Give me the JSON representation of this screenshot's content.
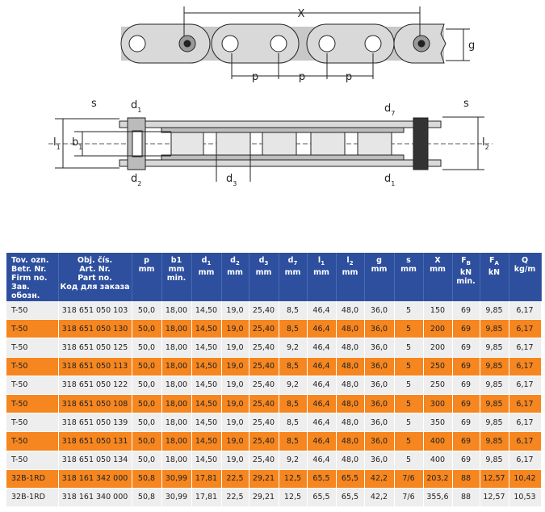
{
  "diagram_top": {
    "labels": [
      {
        "main": "X"
      },
      {
        "main": "p"
      },
      {
        "main": "p"
      },
      {
        "main": "p"
      },
      {
        "main": "g"
      }
    ]
  },
  "diagram_section": {
    "labels": [
      {
        "main": "s"
      },
      {
        "main": "d",
        "sub": "1"
      },
      {
        "main": "l",
        "sub": "1"
      },
      {
        "main": "b",
        "sub": "1"
      },
      {
        "main": "d",
        "sub": "2"
      },
      {
        "main": "d",
        "sub": "3"
      },
      {
        "main": "d",
        "sub": "7"
      },
      {
        "main": "s"
      },
      {
        "main": "l",
        "sub": "2"
      },
      {
        "main": "d",
        "sub": "1"
      }
    ]
  },
  "table": {
    "header": [
      {
        "lines": [
          "Tov. ozn.",
          "Betr. Nr.",
          "Firm no.",
          "Зав. обозн."
        ]
      },
      {
        "lines": [
          "Obj. čís.",
          "Art. Nr.",
          "Part no.",
          "Код для заказа"
        ]
      },
      {
        "symbol": {
          "main": "p"
        },
        "lines": [
          "mm"
        ]
      },
      {
        "symbol": {
          "main": "b1"
        },
        "lines": [
          "mm",
          "min."
        ]
      },
      {
        "symbol": {
          "main": "d",
          "sub": "1"
        },
        "lines": [
          "mm"
        ]
      },
      {
        "symbol": {
          "main": "d",
          "sub": "2"
        },
        "lines": [
          "mm"
        ]
      },
      {
        "symbol": {
          "main": "d",
          "sub": "3"
        },
        "lines": [
          "mm"
        ]
      },
      {
        "symbol": {
          "main": "d",
          "sub": "7"
        },
        "lines": [
          "mm"
        ]
      },
      {
        "symbol": {
          "main": "l",
          "sub": "1"
        },
        "lines": [
          "mm"
        ]
      },
      {
        "symbol": {
          "main": "l",
          "sub": "2"
        },
        "lines": [
          "mm"
        ]
      },
      {
        "symbol": {
          "main": "g"
        },
        "lines": [
          "mm"
        ]
      },
      {
        "symbol": {
          "main": "s"
        },
        "lines": [
          "mm"
        ]
      },
      {
        "symbol": {
          "main": "X"
        },
        "lines": [
          "mm"
        ]
      },
      {
        "symbol": {
          "main": "F",
          "sub": "B"
        },
        "lines": [
          "kN",
          "min."
        ]
      },
      {
        "symbol": {
          "main": "F",
          "sub": "A"
        },
        "lines": [
          "kN"
        ]
      },
      {
        "symbol": {
          "main": "Q"
        },
        "lines": [
          "kg/m"
        ]
      }
    ],
    "rows": [
      [
        "T-50",
        "318 651 050 103",
        "50,0",
        "18,00",
        "14,50",
        "19,0",
        "25,40",
        "8,5",
        "46,4",
        "48,0",
        "36,0",
        "5",
        "150",
        "69",
        "9,85",
        "6,17"
      ],
      [
        "T-50",
        "318 651 050 130",
        "50,0",
        "18,00",
        "14,50",
        "19,0",
        "25,40",
        "8,5",
        "46,4",
        "48,0",
        "36,0",
        "5",
        "200",
        "69",
        "9,85",
        "6,17"
      ],
      [
        "T-50",
        "318 651 050 125",
        "50,0",
        "18,00",
        "14,50",
        "19,0",
        "25,40",
        "9,2",
        "46,4",
        "48,0",
        "36,0",
        "5",
        "200",
        "69",
        "9,85",
        "6,17"
      ],
      [
        "T-50",
        "318 651 050 113",
        "50,0",
        "18,00",
        "14,50",
        "19,0",
        "25,40",
        "8,5",
        "46,4",
        "48,0",
        "36,0",
        "5",
        "250",
        "69",
        "9,85",
        "6,17"
      ],
      [
        "T-50",
        "318 651 050 122",
        "50,0",
        "18,00",
        "14,50",
        "19,0",
        "25,40",
        "9,2",
        "46,4",
        "48,0",
        "36,0",
        "5",
        "250",
        "69",
        "9,85",
        "6,17"
      ],
      [
        "T-50",
        "318 651 050 108",
        "50,0",
        "18,00",
        "14,50",
        "19,0",
        "25,40",
        "8,5",
        "46,4",
        "48,0",
        "36,0",
        "5",
        "300",
        "69",
        "9,85",
        "6,17"
      ],
      [
        "T-50",
        "318 651 050 139",
        "50,0",
        "18,00",
        "14,50",
        "19,0",
        "25,40",
        "8,5",
        "46,4",
        "48,0",
        "36,0",
        "5",
        "350",
        "69",
        "9,85",
        "6,17"
      ],
      [
        "T-50",
        "318 651 050 131",
        "50,0",
        "18,00",
        "14,50",
        "19,0",
        "25,40",
        "8,5",
        "46,4",
        "48,0",
        "36,0",
        "5",
        "400",
        "69",
        "9,85",
        "6,17"
      ],
      [
        "T-50",
        "318 651 050 134",
        "50,0",
        "18,00",
        "14,50",
        "19,0",
        "25,40",
        "9,2",
        "46,4",
        "48,0",
        "36,0",
        "5",
        "400",
        "69",
        "9,85",
        "6,17"
      ],
      [
        "32B-1RD",
        "318 161 342 000",
        "50,8",
        "30,99",
        "17,81",
        "22,5",
        "29,21",
        "12,5",
        "65,5",
        "65,5",
        "42,2",
        "7/6",
        "203,2",
        "88",
        "12,57",
        "10,42"
      ],
      [
        "32B-1RD",
        "318 161 340 000",
        "50,8",
        "30,99",
        "17,81",
        "22,5",
        "29,21",
        "12,5",
        "65,5",
        "65,5",
        "42,2",
        "7/6",
        "355,6",
        "88",
        "12,57",
        "10,53"
      ]
    ]
  }
}
